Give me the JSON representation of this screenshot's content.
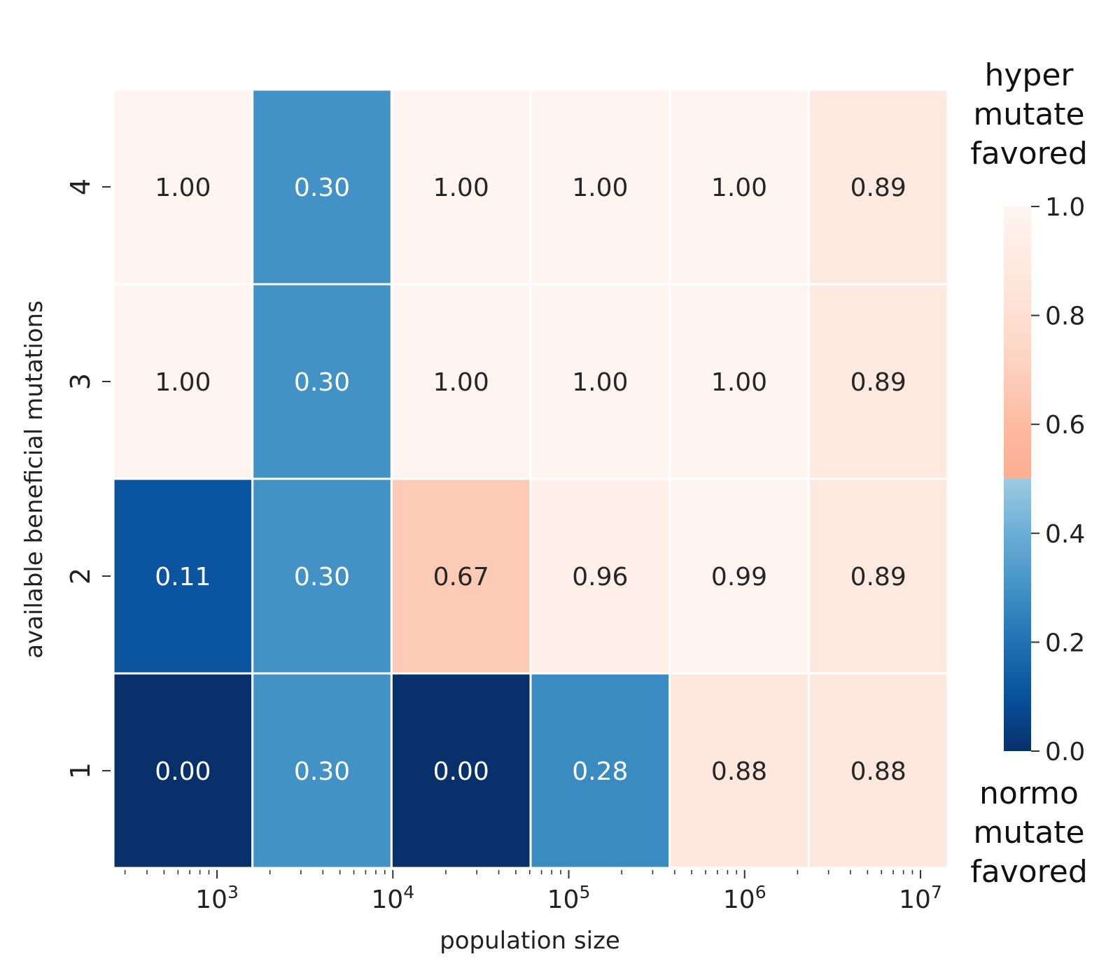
{
  "chart_data": {
    "type": "heatmap",
    "xlabel": "population size",
    "ylabel": "available beneficial mutations",
    "x_axis": {
      "scale": "log",
      "major_ticks": [
        {
          "value": 1000,
          "base": "10",
          "exp": "3"
        },
        {
          "value": 10000,
          "base": "10",
          "exp": "4"
        },
        {
          "value": 100000,
          "base": "10",
          "exp": "5"
        },
        {
          "value": 1000000,
          "base": "10",
          "exp": "6"
        },
        {
          "value": 10000000,
          "base": "10",
          "exp": "7"
        }
      ]
    },
    "rows": [
      "4",
      "3",
      "2",
      "1"
    ],
    "values": [
      [
        1.0,
        0.3,
        1.0,
        1.0,
        1.0,
        0.89
      ],
      [
        1.0,
        0.3,
        1.0,
        1.0,
        1.0,
        0.89
      ],
      [
        0.11,
        0.3,
        0.67,
        0.96,
        0.99,
        0.89
      ],
      [
        0.0,
        0.3,
        0.0,
        0.28,
        0.88,
        0.88
      ]
    ],
    "cell_labels": [
      [
        "1.00",
        "0.30",
        "1.00",
        "1.00",
        "1.00",
        "0.89"
      ],
      [
        "1.00",
        "0.30",
        "1.00",
        "1.00",
        "1.00",
        "0.89"
      ],
      [
        "0.11",
        "0.30",
        "0.67",
        "0.96",
        "0.99",
        "0.89"
      ],
      [
        "0.00",
        "0.30",
        "0.00",
        "0.28",
        "0.88",
        "0.88"
      ]
    ],
    "colorbar": {
      "range": [
        0.0,
        1.0
      ],
      "ticks": [
        "0.0",
        "0.2",
        "0.4",
        "0.6",
        "0.8",
        "1.0"
      ],
      "top_label": [
        "hyper",
        "mutate",
        "favored"
      ],
      "bottom_label": [
        "normo",
        "mutate",
        "favored"
      ],
      "colors": {
        "lower_half": [
          "#08306b",
          "#08519c",
          "#2171b5",
          "#4292c6",
          "#6baed6",
          "#9ecae1"
        ],
        "upper_half": [
          "#fcae91",
          "#fcbba1",
          "#fdd0be",
          "#fee0d2",
          "#feeae1",
          "#fff5f0"
        ]
      }
    },
    "grid": false
  }
}
